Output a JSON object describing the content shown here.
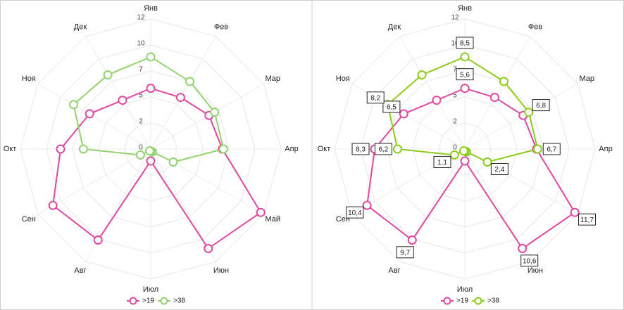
{
  "chart_data": [
    {
      "type": "radar",
      "categories": [
        "Янв",
        "Фев",
        "Мар",
        "Апр",
        "Май",
        "Июн",
        "Июл",
        "Авг",
        "Сен",
        "Окт",
        "Ноя",
        "Дек"
      ],
      "ylim": [
        0,
        12
      ],
      "yticks": [
        0,
        {
          "value": 2.4,
          "label": "2"
        },
        {
          "value": 4.8,
          "label": "5"
        },
        {
          "value": 7.2,
          "label": "7"
        },
        {
          "value": 9.6,
          "label": "10"
        },
        12
      ],
      "grid": true,
      "legend": "bottom",
      "series": [
        {
          "name": ">19",
          "color": "#e0479e",
          "values": [
            5.6,
            5.5,
            6.2,
            6.6,
            11.7,
            10.6,
            1.1,
            9.7,
            10.4,
            8.3,
            6.5,
            5.2
          ]
        },
        {
          "name": ">38",
          "color": "#92d36e",
          "values": [
            8.5,
            7.2,
            6.8,
            6.7,
            2.4,
            0.3,
            0.2,
            0.2,
            1.1,
            6.2,
            8.2,
            7.9
          ]
        }
      ]
    },
    {
      "type": "radar",
      "categories": [
        "Янв",
        "Фев",
        "Мар",
        "Апр",
        "Май",
        "Июн",
        "Июл",
        "Авг",
        "Сен",
        "Окт",
        "Ноя",
        "Дек"
      ],
      "ylim": [
        0,
        12
      ],
      "yticks": [
        0,
        {
          "value": 2.4,
          "label": "2"
        },
        {
          "value": 4.8,
          "label": "5"
        },
        {
          "value": 7.2,
          "label": "7"
        },
        {
          "value": 9.6,
          "label": "10"
        },
        12
      ],
      "grid": true,
      "legend": "bottom",
      "series": [
        {
          "name": ">19",
          "color": "#e0479e",
          "values": [
            5.6,
            5.5,
            6.2,
            6.6,
            11.7,
            10.6,
            1.1,
            9.7,
            10.4,
            8.3,
            6.5,
            5.2
          ],
          "value_labels": [
            "5,6",
            null,
            null,
            null,
            "11,7",
            "10,6",
            null,
            "9,7",
            "10,4",
            "8,3",
            "6,5",
            null
          ]
        },
        {
          "name": ">38",
          "color": "#8ccc1a",
          "values": [
            8.5,
            7.2,
            6.8,
            6.7,
            2.4,
            0.3,
            0.2,
            0.2,
            1.1,
            6.2,
            8.2,
            7.9
          ],
          "value_labels": [
            "8,5",
            null,
            "6,8",
            "6,7",
            "2,4",
            null,
            null,
            null,
            "1,1",
            "6,2",
            "8,2",
            null
          ]
        }
      ]
    }
  ]
}
